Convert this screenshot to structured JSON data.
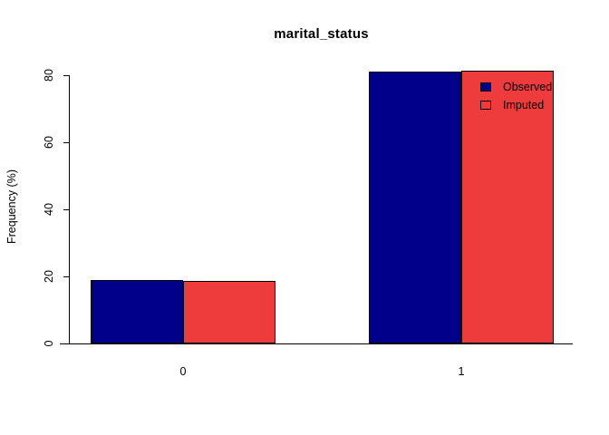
{
  "title": "marital_status",
  "y_axis": {
    "label": "Frequency (%)",
    "ticks": [
      "0",
      "20",
      "40",
      "60",
      "80"
    ]
  },
  "x_axis": {
    "categories": [
      "0",
      "1"
    ]
  },
  "legend": {
    "items": [
      {
        "label": "Observed",
        "color": "#00008B"
      },
      {
        "label": "Imputed",
        "color": "#EE3B3B"
      }
    ]
  },
  "colors": {
    "observed": "#00008B",
    "imputed": "#EE3B3B",
    "axis": "#000000",
    "background": "#FFFFFF"
  },
  "chart_data": {
    "type": "bar",
    "categories": [
      "0",
      "1"
    ],
    "series": [
      {
        "name": "Observed",
        "color": "#00008B",
        "values": [
          19,
          81
        ]
      },
      {
        "name": "Imputed",
        "color": "#EE3B3B",
        "values": [
          18.7,
          81.3
        ]
      }
    ],
    "title": "marital_status",
    "xlabel": "",
    "ylabel": "Frequency (%)",
    "ylim": [
      0,
      80
    ],
    "y_ticks": [
      0,
      20,
      40,
      60,
      80
    ],
    "grid": false,
    "legend_position": "top-right",
    "bar_borders": true
  }
}
